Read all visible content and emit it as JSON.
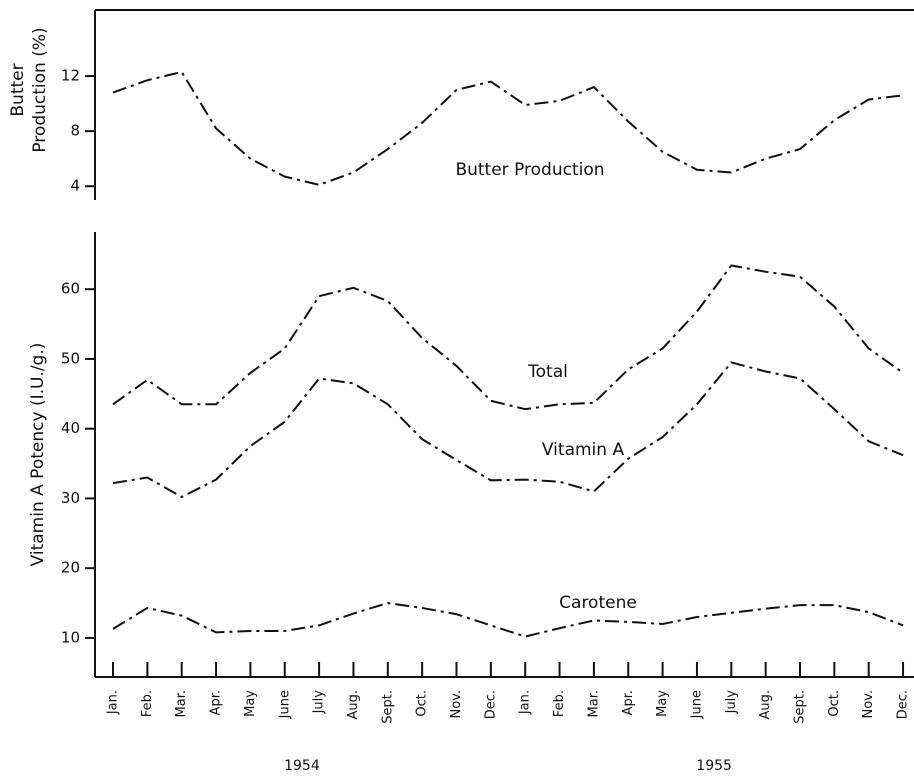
{
  "chart_data": [
    {
      "type": "line",
      "ylabel": [
        "Butter",
        "Production (%)"
      ],
      "ylim": [
        3,
        16.8
      ],
      "yticks": [
        4,
        8,
        12
      ],
      "series": [
        {
          "name": "Butter Production",
          "color": "#111111",
          "values": [
            10.8,
            11.7,
            12.3,
            8.2,
            6.0,
            4.7,
            4.1,
            5.0,
            6.7,
            8.6,
            11.0,
            11.6,
            9.9,
            10.2,
            11.2,
            8.7,
            6.5,
            5.2,
            5.0,
            6.0,
            6.7,
            8.8,
            10.3,
            10.6
          ]
        }
      ]
    },
    {
      "type": "line",
      "ylabel": "Vitamin A Potency (I.U./g.)",
      "categories": [
        "Jan.",
        "Feb.",
        "Mar.",
        "Apr.",
        "May",
        "June",
        "July",
        "Aug.",
        "Sept.",
        "Oct.",
        "Nov.",
        "Dec.",
        "Jan.",
        "Feb.",
        "Mar.",
        "Apr.",
        "May",
        "June",
        "July",
        "Aug.",
        "Sept.",
        "Oct.",
        "Nov.",
        "Dec."
      ],
      "year_labels": [
        "1954",
        "1955"
      ],
      "ylim": [
        4.4,
        68.2
      ],
      "yticks": [
        10,
        20,
        30,
        40,
        50,
        60
      ],
      "series": [
        {
          "name": "Total",
          "color": "#111111",
          "values": [
            43.5,
            47.0,
            43.5,
            43.5,
            48.0,
            51.5,
            59.0,
            60.2,
            58.3,
            53.0,
            49.0,
            44.0,
            42.8,
            43.5,
            43.7,
            48.5,
            51.5,
            56.8,
            63.4,
            62.5,
            61.8,
            57.5,
            51.5,
            48.0
          ]
        },
        {
          "name": "Vitamin A",
          "color": "#111111",
          "values": [
            32.2,
            33.0,
            30.2,
            32.7,
            37.5,
            41.0,
            47.2,
            46.5,
            43.5,
            38.5,
            35.5,
            32.6,
            32.7,
            32.4,
            31.0,
            35.7,
            38.8,
            43.5,
            49.5,
            48.2,
            47.2,
            42.8,
            38.2,
            36.2
          ]
        },
        {
          "name": "Carotene",
          "color": "#111111",
          "values": [
            11.3,
            14.3,
            13.2,
            10.8,
            11.0,
            11.0,
            11.8,
            13.5,
            15.0,
            14.3,
            13.4,
            11.8,
            10.2,
            11.4,
            12.5,
            12.3,
            12.0,
            13.0,
            13.6,
            14.2,
            14.7,
            14.7,
            13.7,
            11.8
          ]
        }
      ]
    }
  ]
}
